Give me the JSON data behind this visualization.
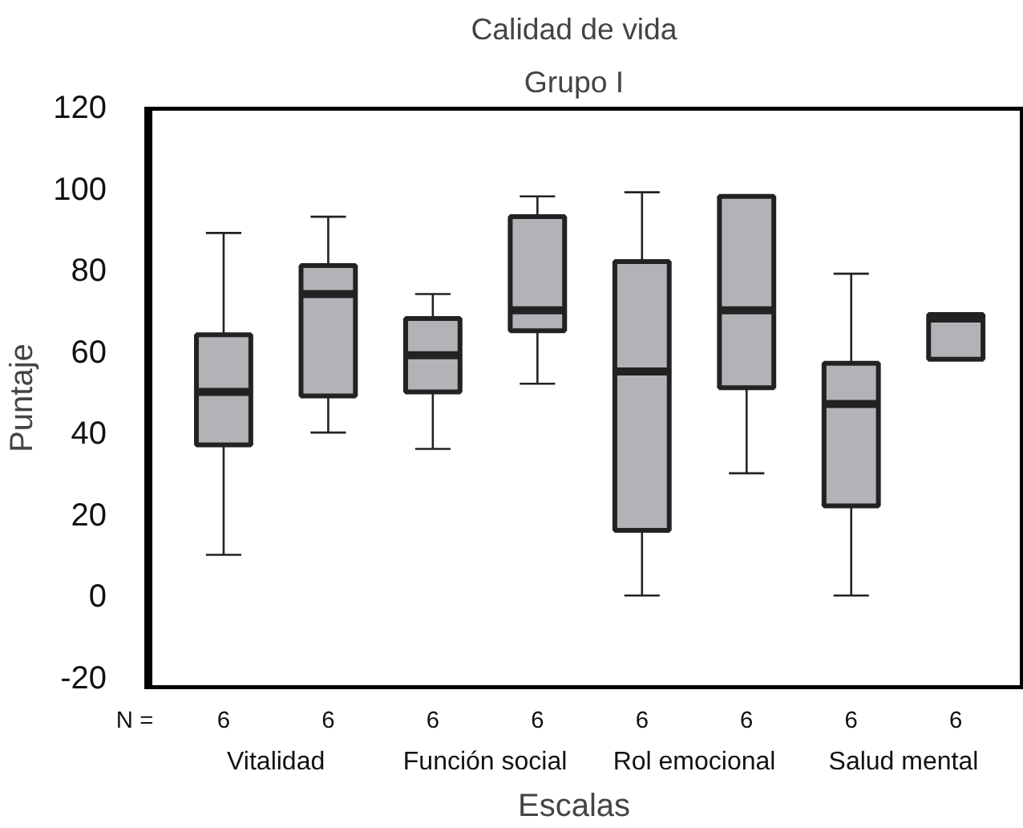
{
  "chart_data": {
    "type": "box",
    "title": "Calidad de vida",
    "subtitle": "Grupo I",
    "xlabel": "Escalas",
    "ylabel": "Puntaje",
    "categories": [
      "Vitalidad",
      "Función social",
      "Rol emocional",
      "Salud mental"
    ],
    "color": "#b2b3b6",
    "series": [
      {
        "boxes": [
          {
            "low": 10,
            "q1": 37,
            "median": 50,
            "q3": 64,
            "high": 89
          },
          {
            "low": 36,
            "q1": 50,
            "median": 59,
            "q3": 68,
            "high": 74
          },
          {
            "low": 0,
            "q1": 16,
            "median": 55,
            "q3": 82,
            "high": 99
          },
          {
            "low": 0,
            "q1": 22,
            "median": 47,
            "q3": 57,
            "high": 79
          }
        ]
      },
      {
        "boxes": [
          {
            "low": 40,
            "q1": 49,
            "median": 74,
            "q3": 81,
            "high": 93
          },
          {
            "low": 52,
            "q1": 65,
            "median": 70,
            "q3": 93,
            "high": 98
          },
          {
            "low": 30,
            "q1": 51,
            "median": 70,
            "q3": 98,
            "high": 98
          },
          {
            "low": 58,
            "q1": 58,
            "median": 68,
            "q3": 69,
            "high": 69
          }
        ]
      }
    ],
    "ylim": [
      -23,
      120
    ],
    "yticks": [
      -20,
      0,
      20,
      40,
      60,
      80,
      100,
      120
    ],
    "grid": false,
    "annotations": [
      "N =",
      "6",
      "6",
      "6",
      "6",
      "6",
      "6",
      "6",
      "6"
    ]
  }
}
